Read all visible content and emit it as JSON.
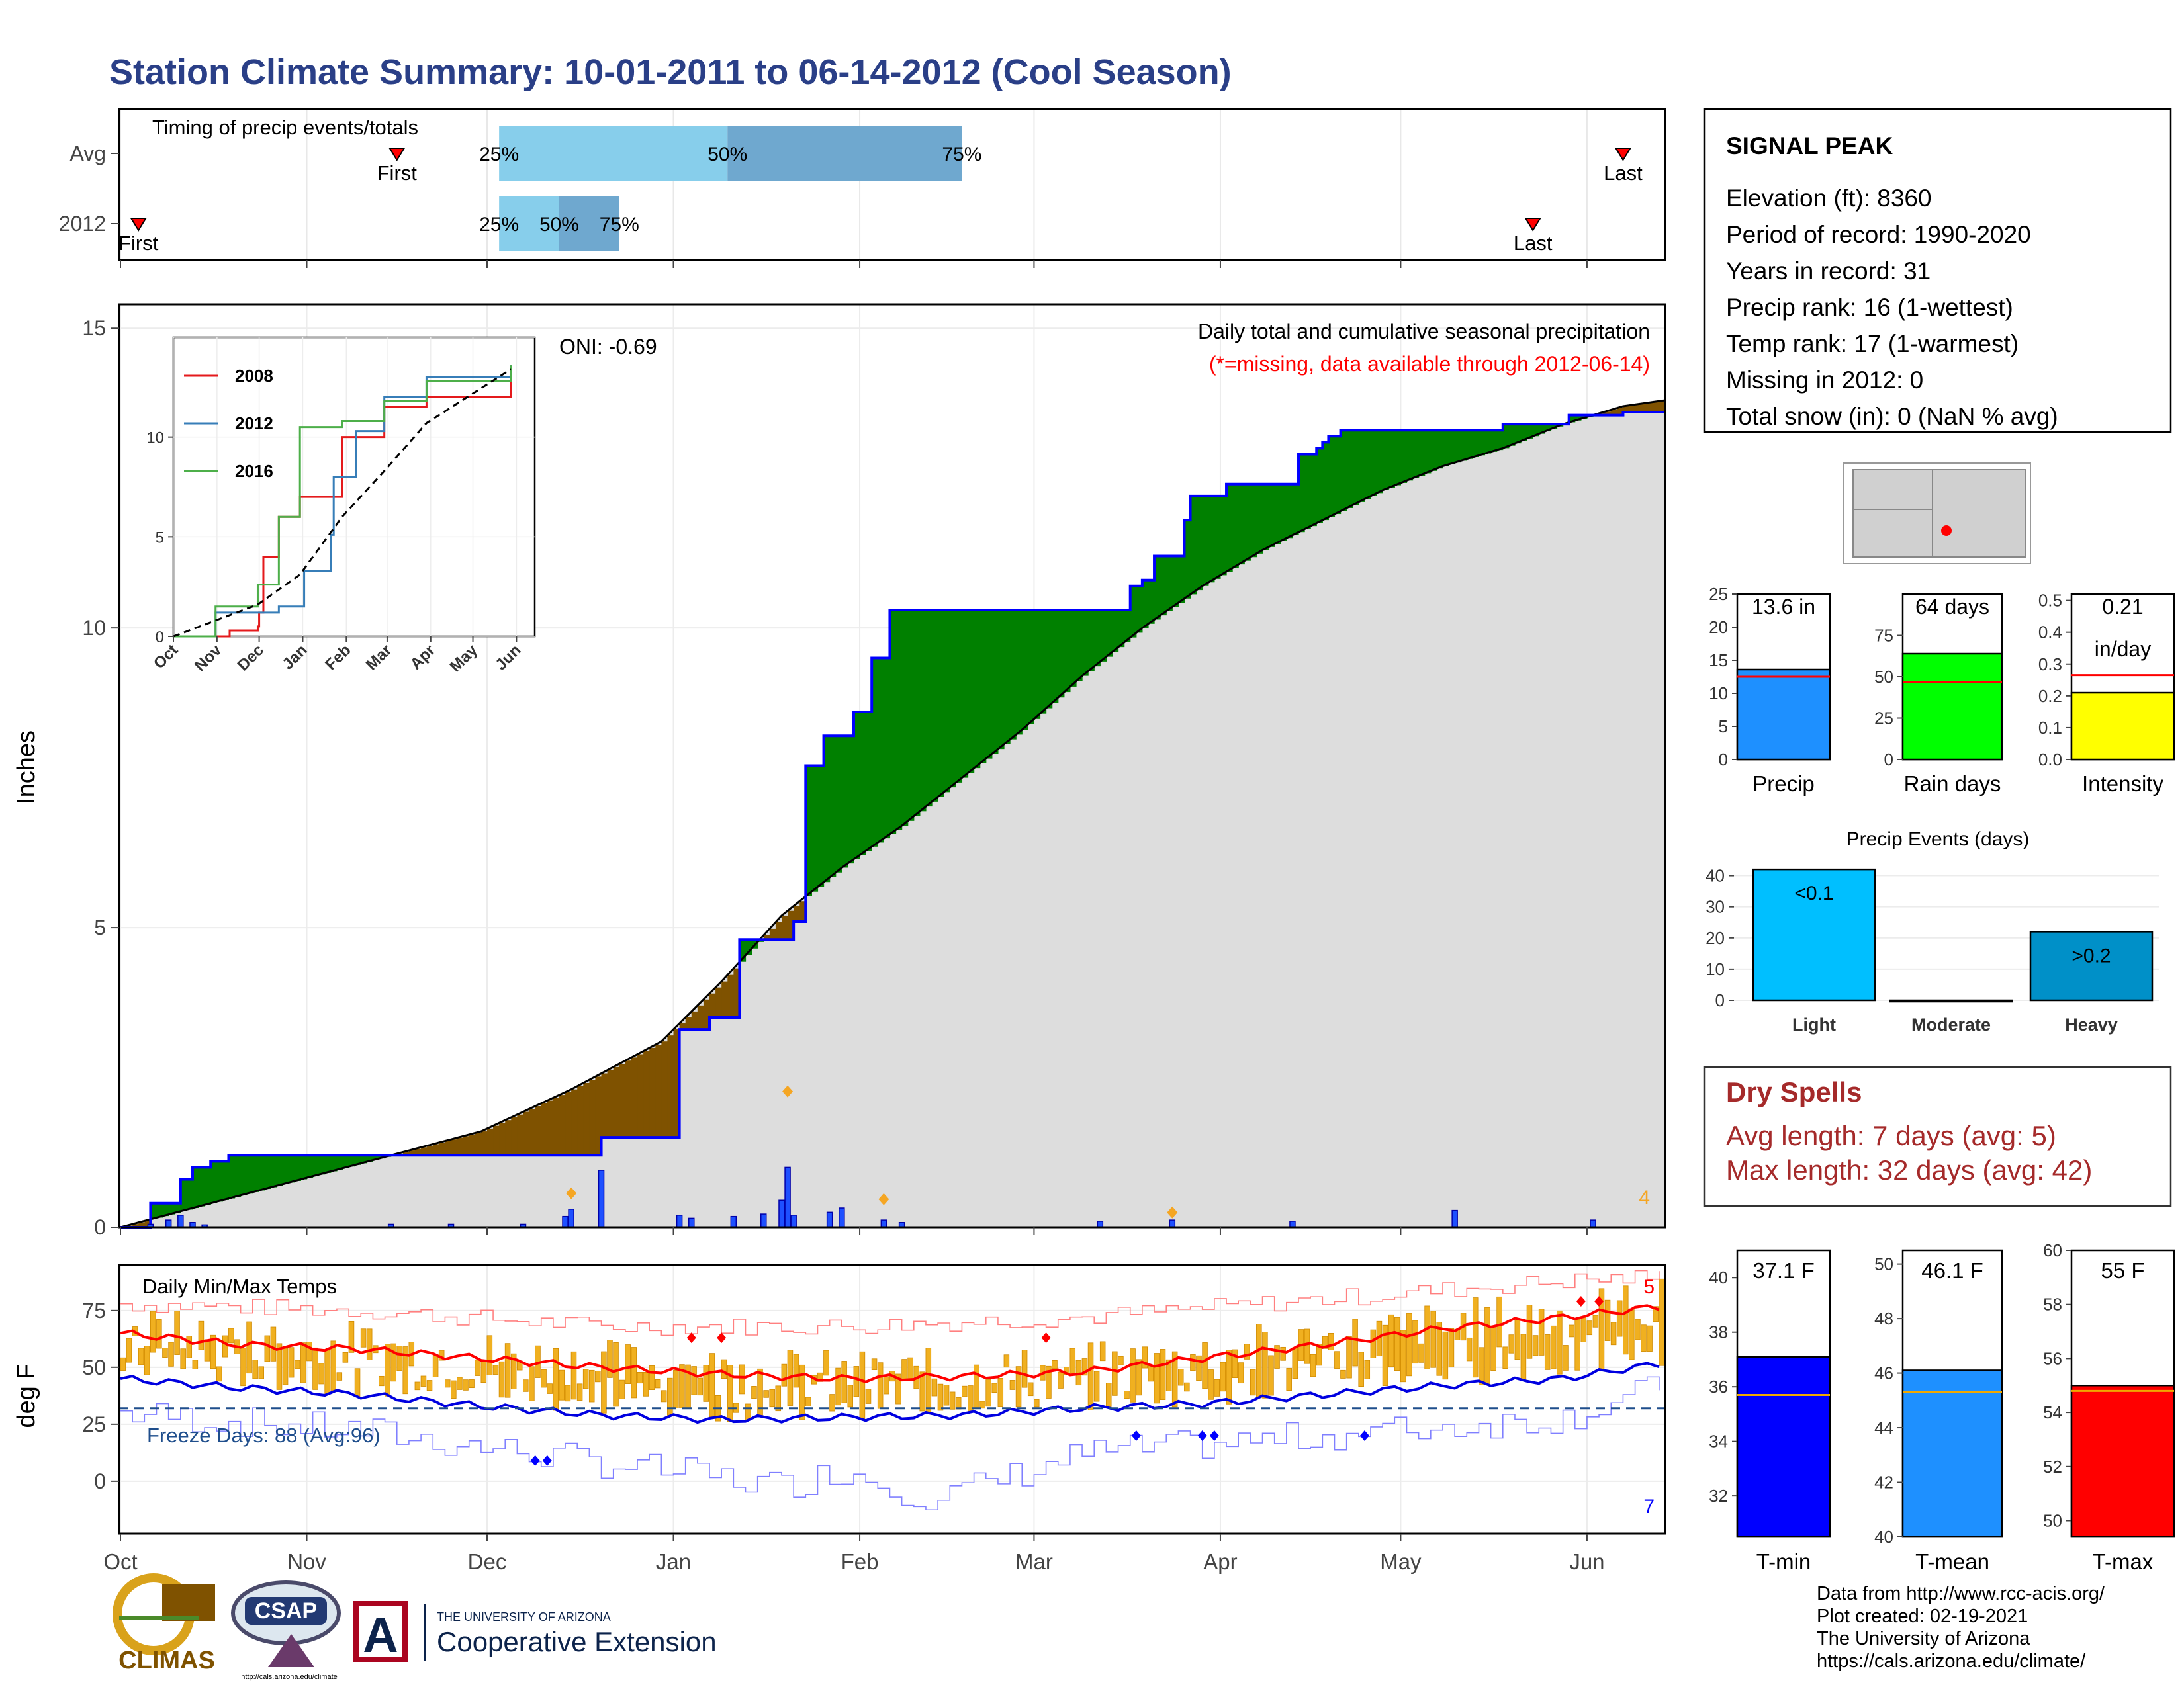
{
  "title": "Station Climate Summary: 10-01-2011 to 06-14-2012 (Cool Season)",
  "colors": {
    "title": "#2a3f87",
    "green": "#008000",
    "brown": "#7f5200",
    "gray": "#dddddd",
    "blue_outline": "#0000ff",
    "red": "#ff0000",
    "orange": "#f0a800",
    "light_blue": "#87ceeb",
    "mid_blue": "#6fa8cf",
    "dry_spell_red": "#a52a2a"
  },
  "timing_panel": {
    "label": "Timing of precip events/totals",
    "rows": [
      {
        "label": "Avg",
        "first_day": 46,
        "last_day": 250,
        "q25_day": 63,
        "q50_day": 101,
        "q75_day": 140,
        "first_label": "First",
        "last_label": "Last",
        "q25_label": "25%",
        "q50_label": "50%",
        "q75_label": "75%"
      },
      {
        "label": "2012",
        "first_day": 3,
        "last_day": 235,
        "q25_day": 63,
        "q50_day": 73,
        "q75_day": 83,
        "first_label": "First",
        "last_label": "Last",
        "q25_label": "25%",
        "q50_label": "50%",
        "q75_label": "75%"
      }
    ]
  },
  "main_panel": {
    "ylabel": "Inches",
    "y_ticks": [
      "0",
      "5",
      "10",
      "15"
    ],
    "oni": "ONI: -0.69",
    "caption": "Daily total and cumulative seasonal precipitation",
    "missing_note": "(*=missing, data available through 2012-06-14)",
    "max_daily_label": "4"
  },
  "temp_panel": {
    "ylabel": "deg F",
    "label": "Daily Min/Max Temps",
    "freeze": "Freeze Days: 88 (Avg:96)",
    "y_ticks": [
      "0",
      "25",
      "50",
      "75"
    ],
    "count_top": "5",
    "count_bottom": "7"
  },
  "x_months": [
    "Oct",
    "Nov",
    "Dec",
    "Jan",
    "Feb",
    "Mar",
    "Apr",
    "May",
    "Jun"
  ],
  "inset": {
    "months": [
      "Oct",
      "Nov",
      "Dec",
      "Jan",
      "Feb",
      "Mar",
      "Apr",
      "May",
      "Jun"
    ],
    "y_ticks": [
      "0",
      "5",
      "10"
    ],
    "legend": [
      {
        "name": "2008",
        "color": "#e41a1c"
      },
      {
        "name": "2012",
        "color": "#377eb8"
      },
      {
        "name": "2016",
        "color": "#4daf4a"
      }
    ]
  },
  "station": {
    "name": "SIGNAL PEAK",
    "lines": [
      "Elevation (ft): 8360",
      "Period of record: 1990-2020",
      "Years in record: 31",
      "Precip rank: 16 (1-wettest)",
      "Temp rank: 17 (1-warmest)",
      "Missing in 2012: 0",
      "Total snow (in): 0 (NaN % avg)"
    ]
  },
  "summary_bars": [
    {
      "label": "Precip",
      "value_label": "13.6 in",
      "value": 13.6,
      "avg": 12.5,
      "ymax": 25,
      "ticks": [
        "0",
        "5",
        "10",
        "15",
        "20",
        "25"
      ],
      "color": "#1e90ff"
    },
    {
      "label": "Rain days",
      "value_label": "64 days",
      "value": 64,
      "avg": 47,
      "ymax": 100,
      "ticks": [
        "0",
        "25",
        "50",
        "75"
      ],
      "color": "#00ff00"
    },
    {
      "label": "Intensity",
      "value_label": "0.21",
      "value_label2": "in/day",
      "value": 0.21,
      "avg": 0.265,
      "ymax": 0.52,
      "ticks": [
        "0.0",
        "0.1",
        "0.2",
        "0.3",
        "0.4",
        "0.5"
      ],
      "color": "#ffff00"
    }
  ],
  "precip_events": {
    "title": "Precip Events (days)",
    "ticks": [
      "0",
      "10",
      "20",
      "30",
      "40"
    ],
    "categories": [
      "Light",
      "Moderate",
      "Heavy"
    ],
    "values": [
      42,
      0,
      22
    ],
    "value_labels": [
      "<0.1",
      "",
      ">0.2"
    ],
    "colors": [
      "#00bfff",
      "#00bfff",
      "#0090c8"
    ]
  },
  "dry_spells": {
    "title": "Dry Spells",
    "avg_line": "Avg length: 7 days (avg: 5)",
    "max_line": "Max length: 32 days (avg: 42)"
  },
  "temp_bars": [
    {
      "label": "T-min",
      "value_label": "37.1 F",
      "value": 37.1,
      "avg": 35.7,
      "ymin": 30.5,
      "ymax": 41,
      "ticks": [
        "32",
        "34",
        "36",
        "38",
        "40"
      ],
      "color": "#0000ff"
    },
    {
      "label": "T-mean",
      "value_label": "46.1 F",
      "value": 46.1,
      "avg": 45.3,
      "ymin": 40,
      "ymax": 50.5,
      "ticks": [
        "40",
        "42",
        "44",
        "46",
        "48",
        "50"
      ],
      "color": "#1e90ff"
    },
    {
      "label": "T-max",
      "value_label": "55 F",
      "value": 55,
      "avg": 54.8,
      "ymin": 49.4,
      "ymax": 60,
      "ticks": [
        "50",
        "52",
        "54",
        "56",
        "58",
        "60"
      ],
      "color": "#ff0000"
    }
  ],
  "footer": {
    "lines": [
      "Data from http://www.rcc-acis.org/",
      "Plot created: 02-19-2021",
      "The University of Arizona",
      "https://cals.arizona.edu/climate/"
    ],
    "climas": "CLIMAS",
    "csap": "CSAP",
    "csap_url": "http://cals.arizona.edu/climate",
    "ua_small": "THE UNIVERSITY OF ARIZONA",
    "ua_big": "Cooperative Extension"
  },
  "chart_data": [
    {
      "type": "area",
      "title": "Daily total and cumulative seasonal precipitation",
      "ylabel": "Inches",
      "ylim": [
        0,
        15
      ],
      "x_unit": "days since 2011-10-01",
      "series": [
        {
          "name": "2012 cumulative",
          "x": [
            0,
            5,
            10,
            12,
            15,
            18,
            30,
            65,
            80,
            93,
            98,
            103,
            112,
            114,
            117,
            122,
            125,
            128,
            130,
            140,
            146,
            168,
            170,
            172,
            177,
            178,
            184,
            190,
            196,
            199,
            200,
            201,
            203,
            230,
            241,
            250,
            257
          ],
          "y": [
            0,
            0.4,
            0.8,
            1.0,
            1.1,
            1.2,
            1.2,
            1.2,
            1.5,
            3.3,
            3.5,
            4.8,
            5.1,
            7.7,
            8.2,
            8.6,
            9.5,
            10.3,
            10.3,
            10.3,
            10.3,
            10.7,
            10.8,
            11.2,
            11.8,
            12.2,
            12.4,
            12.4,
            12.9,
            13.0,
            13.1,
            13.2,
            13.3,
            13.4,
            13.55,
            13.6,
            13.6
          ]
        },
        {
          "name": "Average cumulative",
          "x": [
            0,
            30,
            60,
            75,
            90,
            100,
            110,
            120,
            130,
            140,
            150,
            160,
            170,
            180,
            190,
            200,
            210,
            220,
            230,
            240,
            250,
            257
          ],
          "y": [
            0,
            0.8,
            1.6,
            2.3,
            3.1,
            4.1,
            5.2,
            6.0,
            6.7,
            7.5,
            8.3,
            9.2,
            10.0,
            10.7,
            11.3,
            11.8,
            12.3,
            12.7,
            13.0,
            13.4,
            13.7,
            13.8
          ]
        },
        {
          "name": "Daily precip",
          "x": [
            5,
            8,
            10,
            12,
            14,
            45,
            55,
            67,
            74,
            75,
            80,
            93,
            95,
            102,
            107,
            110,
            111,
            112,
            118,
            120,
            127,
            130,
            163,
            175,
            195,
            222,
            245
          ],
          "y": [
            0.05,
            0.12,
            0.2,
            0.08,
            0.04,
            0.05,
            0.05,
            0.05,
            0.18,
            0.3,
            0.95,
            0.2,
            0.15,
            0.18,
            0.22,
            0.45,
            1.0,
            0.2,
            0.25,
            0.32,
            0.12,
            0.08,
            0.1,
            0.12,
            0.1,
            0.28,
            0.12
          ]
        }
      ]
    },
    {
      "type": "line",
      "title": "Daily Min/Max Temps",
      "ylabel": "deg F",
      "ylim": [
        -20,
        95
      ],
      "x_unit": "days since 2011-10-01",
      "series": [
        {
          "name": "Avg max",
          "x": [
            0,
            20,
            40,
            60,
            80,
            100,
            120,
            140,
            160,
            180,
            200,
            220,
            240,
            257
          ],
          "y": [
            65,
            60,
            58,
            54,
            50,
            47,
            45,
            46,
            48,
            54,
            60,
            67,
            72,
            77
          ]
        },
        {
          "name": "Avg min",
          "x": [
            0,
            20,
            40,
            60,
            80,
            100,
            120,
            140,
            160,
            180,
            200,
            220,
            240,
            257
          ],
          "y": [
            45,
            41,
            38,
            33,
            29,
            27,
            28,
            29,
            32,
            34,
            38,
            42,
            45,
            52
          ]
        },
        {
          "name": "Record high",
          "x": [
            0,
            40,
            80,
            120,
            160,
            200,
            240,
            257
          ],
          "y": [
            78,
            75,
            68,
            68,
            72,
            80,
            88,
            90
          ]
        },
        {
          "name": "Record low",
          "x": [
            0,
            40,
            80,
            110,
            120,
            135,
            160,
            200,
            240,
            257
          ],
          "y": [
            30,
            22,
            8,
            -2,
            5,
            -8,
            12,
            20,
            28,
            42
          ]
        }
      ]
    },
    {
      "type": "line",
      "title": "",
      "ylim": [
        0,
        15
      ],
      "series": [
        {
          "name": "2008",
          "x": [
            0,
            40,
            60,
            61,
            64,
            75,
            90,
            120,
            150,
            180,
            240
          ],
          "y": [
            0,
            0.3,
            0.5,
            1.2,
            4.0,
            6.0,
            7.0,
            10.0,
            11.5,
            12.0,
            13.0
          ]
        },
        {
          "name": "2012",
          "x": [
            0,
            30,
            60,
            75,
            93,
            112,
            114,
            130,
            150,
            180,
            240
          ],
          "y": [
            0,
            1.2,
            1.2,
            1.5,
            3.3,
            5.1,
            8.0,
            10.3,
            12.0,
            13.0,
            13.6
          ]
        },
        {
          "name": "2016",
          "x": [
            0,
            30,
            60,
            75,
            90,
            120,
            150,
            180,
            240
          ],
          "y": [
            0,
            1.5,
            2.6,
            6.0,
            10.5,
            10.8,
            11.8,
            12.8,
            13.6
          ]
        },
        {
          "name": "Average",
          "x": [
            0,
            30,
            60,
            90,
            120,
            150,
            180,
            240
          ],
          "y": [
            0,
            0.8,
            1.6,
            3.1,
            6.0,
            8.3,
            10.7,
            13.4
          ]
        }
      ]
    },
    {
      "type": "bar",
      "title": "Precip Events (days)",
      "categories": [
        "Light",
        "Moderate",
        "Heavy"
      ],
      "values": [
        42,
        0,
        22
      ],
      "ylim": [
        0,
        45
      ]
    },
    {
      "type": "bar",
      "categories": [
        "Precip",
        "Rain days",
        "Intensity"
      ],
      "values": [
        13.6,
        64,
        0.21
      ]
    },
    {
      "type": "bar",
      "categories": [
        "T-min",
        "T-mean",
        "T-max"
      ],
      "values": [
        37.1,
        46.1,
        55
      ]
    }
  ]
}
